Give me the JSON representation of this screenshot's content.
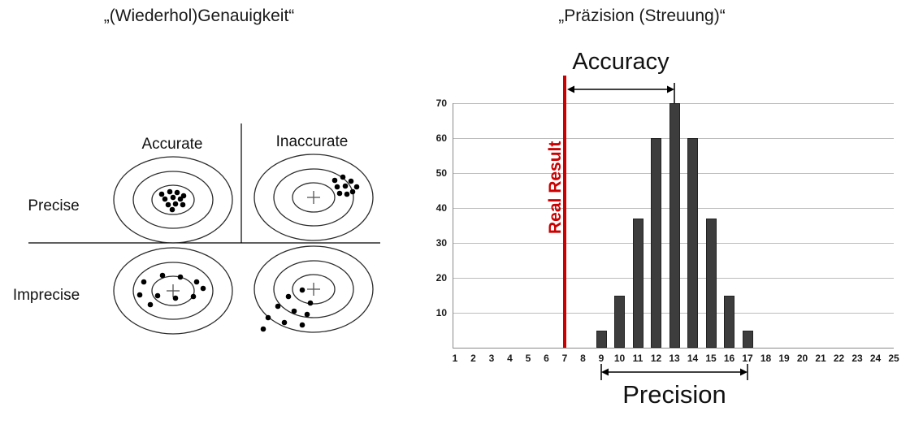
{
  "left_panel": {
    "title": "„(Wiederhol)Genauigkeit“",
    "col_labels": [
      "Accurate",
      "Inaccurate"
    ],
    "row_labels": [
      "Precise",
      "Imprecise"
    ]
  },
  "right_panel": {
    "title": "„Präzision (Streuung)“",
    "accuracy_label": "Accuracy",
    "precision_label": "Precision",
    "real_result_label": "Real Result"
  },
  "diagram": {
    "targets": [
      {
        "id": "tl",
        "row": "Precise",
        "col": "Accurate",
        "plus": false,
        "dots": [
          [
            -14,
            -7
          ],
          [
            -4,
            -10
          ],
          [
            5,
            -9
          ],
          [
            13,
            -5
          ],
          [
            -10,
            -1
          ],
          [
            0,
            -3
          ],
          [
            9,
            -1
          ],
          [
            -6,
            6
          ],
          [
            3,
            5
          ],
          [
            12,
            6
          ],
          [
            -1,
            12
          ]
        ]
      },
      {
        "id": "tr",
        "row": "Precise",
        "col": "Inaccurate",
        "plus": true,
        "dots": [
          [
            26,
            -21
          ],
          [
            36,
            -25
          ],
          [
            46,
            -20
          ],
          [
            53,
            -13
          ],
          [
            29,
            -13
          ],
          [
            39,
            -14
          ],
          [
            48,
            -7
          ],
          [
            32,
            -5
          ],
          [
            41,
            -4
          ]
        ]
      },
      {
        "id": "bl",
        "row": "Imprecise",
        "col": "Accurate",
        "plus": true,
        "dots": [
          [
            -36,
            -11
          ],
          [
            -13,
            -19
          ],
          [
            9,
            -17
          ],
          [
            29,
            -11
          ],
          [
            -41,
            5
          ],
          [
            -19,
            6
          ],
          [
            3,
            9
          ],
          [
            25,
            7
          ],
          [
            37,
            -3
          ],
          [
            -28,
            17
          ]
        ]
      },
      {
        "id": "br",
        "row": "Imprecise",
        "col": "Inaccurate",
        "plus": true,
        "dots": [
          [
            -14,
            1
          ],
          [
            -31,
            9
          ],
          [
            -4,
            17
          ],
          [
            -44,
            21
          ],
          [
            -24,
            27
          ],
          [
            -8,
            31
          ],
          [
            -56,
            35
          ],
          [
            -36,
            41
          ],
          [
            -14,
            44
          ],
          [
            -62,
            49
          ]
        ]
      }
    ]
  },
  "chart_data": {
    "type": "bar",
    "title": "„Präzision (Streuung)“",
    "x": [
      9,
      10,
      11,
      12,
      13,
      14,
      15,
      16,
      17
    ],
    "values": [
      5,
      15,
      37,
      60,
      70,
      60,
      37,
      15,
      5
    ],
    "x_axis_ticks": [
      1,
      2,
      3,
      4,
      5,
      6,
      7,
      8,
      9,
      10,
      11,
      12,
      13,
      14,
      15,
      16,
      17,
      18,
      19,
      20,
      21,
      22,
      23,
      24,
      25
    ],
    "y_ticks": [
      10,
      20,
      30,
      40,
      50,
      60,
      70
    ],
    "ylim": [
      0,
      70
    ],
    "xlim": [
      1,
      25
    ],
    "xlabel": "",
    "ylabel": "",
    "grid": true,
    "legend": "none",
    "bar_color": "#3d3d3d",
    "real_result_x": 7,
    "real_result_color": "#cc0000",
    "annotations": {
      "accuracy_span": {
        "from_x": 7,
        "to_x": 13,
        "label": "Accuracy"
      },
      "precision_span": {
        "from_x": 9,
        "to_x": 17,
        "label": "Precision"
      }
    }
  }
}
